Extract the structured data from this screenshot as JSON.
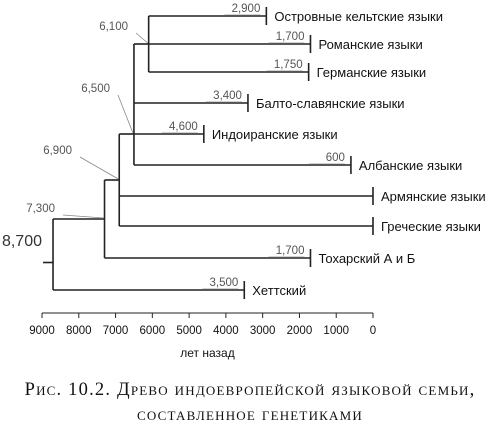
{
  "root_label": "8,700",
  "leaves": [
    {
      "name": "Островные кельтские языки",
      "age": "2,900",
      "years": 2900
    },
    {
      "name": "Романские языки",
      "age": "1,700",
      "years": 1700
    },
    {
      "name": "Германские языки",
      "age": "1,750",
      "years": 1750
    },
    {
      "name": "Балто-славянские языки",
      "age": "3,400",
      "years": 3400
    },
    {
      "name": "Индоиранские языки",
      "age": "4,600",
      "years": 4600
    },
    {
      "name": "Албанские языки",
      "age": "600",
      "years": 600
    },
    {
      "name": "Армянские языки",
      "age": "",
      "years": 0
    },
    {
      "name": "Греческие языки",
      "age": "",
      "years": 0
    },
    {
      "name": "Тохарский А и Б",
      "age": "1,700",
      "years": 1700
    },
    {
      "name": "Хеттский",
      "age": "3,500",
      "years": 3500
    }
  ],
  "nodes": [
    {
      "id": "n6100",
      "label": "6,100",
      "years": 6100
    },
    {
      "id": "n6500",
      "label": "6,500",
      "years": 6500
    },
    {
      "id": "n6900",
      "label": "6,900",
      "years": 6900
    },
    {
      "id": "n7300",
      "label": "7,300",
      "years": 7300
    },
    {
      "id": "n8700",
      "label": "8,700",
      "years": 8700
    }
  ],
  "axis": {
    "ticks": [
      "9000",
      "8000",
      "7000",
      "6000",
      "5000",
      "4000",
      "3000",
      "2000",
      "1000",
      "0"
    ],
    "label": "лет назад"
  },
  "caption": {
    "line1": "Рис. 10.2. Древо индоевропейской языковой семьи,",
    "line2": "составленное генетиками"
  }
}
